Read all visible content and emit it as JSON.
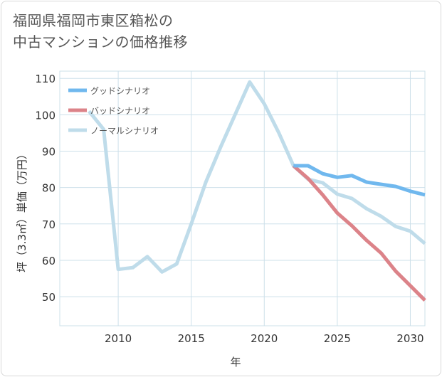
{
  "title_lines": [
    "福岡県福岡市東区箱松の",
    "中古マンションの価格推移"
  ],
  "colors": {
    "good": "#70b8ee",
    "bad": "#dc8389",
    "normal": "#bfdcea",
    "grid": "#cde0ea"
  },
  "chart_data": {
    "type": "line",
    "title": "福岡県福岡市東区箱松の中古マンションの価格推移",
    "xlabel": "年",
    "ylabel": "坪（3.3㎡）単価（万円）",
    "xlim": [
      2006,
      2031
    ],
    "ylim": [
      42,
      112
    ],
    "xticks": [
      2010,
      2015,
      2020,
      2025,
      2030
    ],
    "yticks": [
      50,
      60,
      70,
      80,
      90,
      100,
      110
    ],
    "legend_position": "top-left",
    "series": [
      {
        "name": "グッドシナリオ",
        "color": "#70b8ee",
        "x": [
          2022,
          2023,
          2024,
          2025,
          2026,
          2027,
          2028,
          2029,
          2030,
          2031
        ],
        "values": [
          86,
          86,
          83.8,
          82.8,
          83.3,
          81.5,
          80.9,
          80.3,
          79,
          78
        ]
      },
      {
        "name": "バッドシナリオ",
        "color": "#dc8389",
        "x": [
          2022,
          2023,
          2024,
          2025,
          2026,
          2027,
          2028,
          2029,
          2030,
          2031
        ],
        "values": [
          86,
          82.5,
          78,
          73,
          69.5,
          65.5,
          62,
          57,
          53,
          49
        ]
      },
      {
        "name": "ノーマルシナリオ",
        "color": "#bfdcea",
        "x": [
          2008,
          2009,
          2010,
          2011,
          2012,
          2013,
          2014,
          2015,
          2016,
          2017,
          2018,
          2019,
          2020,
          2021,
          2022,
          2023,
          2024,
          2025,
          2026,
          2027,
          2028,
          2029,
          2030,
          2031
        ],
        "values": [
          101,
          96,
          57.5,
          58,
          61,
          56.8,
          59,
          70,
          81.5,
          91,
          100,
          109,
          103,
          95,
          86,
          82.3,
          81.3,
          78.2,
          77,
          74.2,
          72.1,
          69.3,
          68,
          64.6
        ]
      }
    ]
  }
}
